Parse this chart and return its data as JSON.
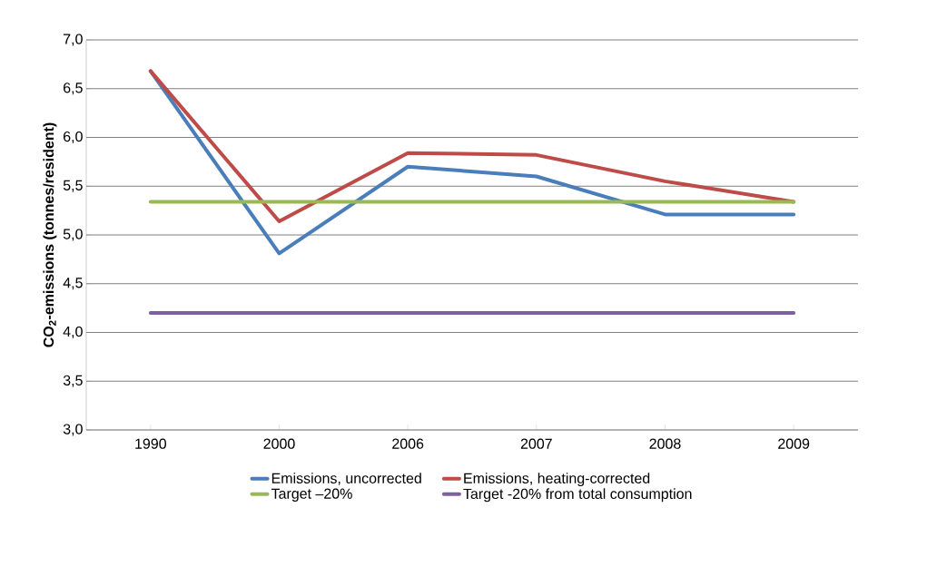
{
  "chart_data": {
    "type": "line",
    "ylabel": "CO$_{2}$-emissions (tonnes/resident)",
    "categories": [
      "1990",
      "2000",
      "2006",
      "2007",
      "2008",
      "2009"
    ],
    "series": [
      {
        "name": "Emissions, uncorrected",
        "color": "#4a7ebb",
        "values": [
          6.68,
          4.81,
          5.7,
          5.6,
          5.21,
          5.21
        ]
      },
      {
        "name": "Emissions, heating-corrected",
        "color": "#be4b48",
        "values": [
          6.68,
          5.14,
          5.84,
          5.82,
          5.55,
          5.34
        ]
      },
      {
        "name": "Target –20%",
        "color": "#98b954",
        "values": [
          5.34,
          5.34,
          5.34,
          5.34,
          5.34,
          5.34
        ]
      },
      {
        "name": "Target -20% from total consumption",
        "color": "#7d60a0",
        "values": [
          4.2,
          4.2,
          4.2,
          4.2,
          4.2,
          4.2
        ]
      }
    ],
    "ylim": [
      3.0,
      7.0
    ],
    "yticks": [
      {
        "value": 3.0,
        "label": "3,0"
      },
      {
        "value": 3.5,
        "label": "3,5"
      },
      {
        "value": 4.0,
        "label": "4,0"
      },
      {
        "value": 4.5,
        "label": "4,5"
      },
      {
        "value": 5.0,
        "label": "5,0"
      },
      {
        "value": 5.5,
        "label": "5,5"
      },
      {
        "value": 6.0,
        "label": "6,0"
      },
      {
        "value": 6.5,
        "label": "6,5"
      },
      {
        "value": 7.0,
        "label": "7,0"
      }
    ],
    "grid": "y",
    "legend": "bottom",
    "marker": "none",
    "line_style": "solid"
  }
}
